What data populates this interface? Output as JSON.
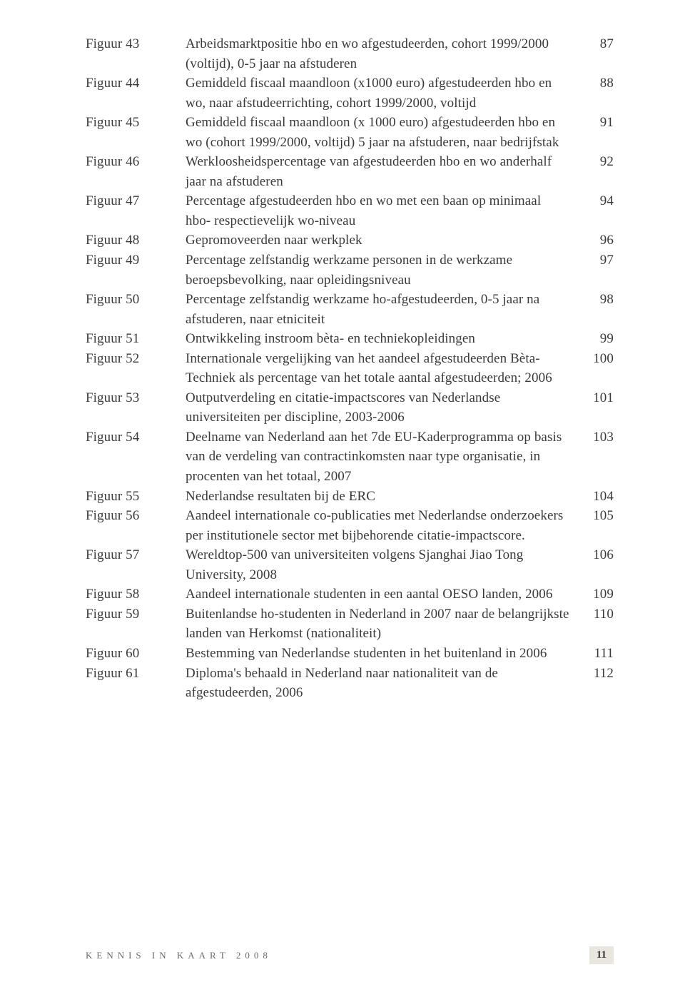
{
  "entries": [
    {
      "label": "Figuur 43",
      "desc": "Arbeidsmarktpositie hbo en wo afgestudeerden, cohort 1999/2000 (voltijd), 0-5 jaar na afstuderen",
      "page": "87"
    },
    {
      "label": "Figuur 44",
      "desc": "Gemiddeld fiscaal maandloon (x1000 euro) afgestudeerden hbo en wo, naar afstudeerrichting, cohort 1999/2000, voltijd",
      "page": "88"
    },
    {
      "label": "Figuur 45",
      "desc": "Gemiddeld fiscaal maandloon (x 1000 euro) afgestudeerden hbo en wo (cohort 1999/2000, voltijd) 5 jaar na afstuderen, naar bedrijfstak",
      "page": "91"
    },
    {
      "label": "Figuur 46",
      "desc": "Werkloosheidspercentage van afgestudeerden hbo en wo anderhalf jaar na afstuderen",
      "page": "92"
    },
    {
      "label": "Figuur 47",
      "desc": "Percentage afgestudeerden hbo en wo met een baan op minimaal hbo- respectievelijk wo-niveau",
      "page": "94"
    },
    {
      "label": "Figuur 48",
      "desc": "Gepromoveerden naar werkplek",
      "page": "96"
    },
    {
      "label": "Figuur 49",
      "desc": "Percentage zelfstandig werkzame personen in de werkzame beroepsbevolking, naar opleidingsniveau",
      "page": "97"
    },
    {
      "label": "Figuur 50",
      "desc": "Percentage zelfstandig werkzame ho-afgestudeerden, 0-5 jaar na afstuderen, naar etniciteit",
      "page": "98"
    },
    {
      "label": "Figuur 51",
      "desc": "Ontwikkeling instroom bèta- en techniekopleidingen",
      "page": "99"
    },
    {
      "label": "Figuur 52",
      "desc": "Internationale vergelijking van het aandeel afgestudeerden Bèta-Techniek als percentage van het totale aantal afgestudeerden; 2006",
      "page": "100"
    },
    {
      "label": "Figuur 53",
      "desc": "Outputverdeling en citatie-impactscores van Nederlandse universiteiten per discipline, 2003-2006",
      "page": "101"
    },
    {
      "label": "Figuur 54",
      "desc": "Deelname van Nederland aan het 7de EU-Kaderprogramma op basis van de verdeling van contractinkomsten naar type organisatie, in procenten van het totaal, 2007",
      "page": "103"
    },
    {
      "label": "Figuur 55",
      "desc": "Nederlandse resultaten bij de ERC",
      "page": "104"
    },
    {
      "label": "Figuur 56",
      "desc": "Aandeel internationale co-publicaties met Nederlandse onderzoekers per institutionele sector met bijbehorende citatie-impactscore.",
      "page": "105"
    },
    {
      "label": "Figuur 57",
      "desc": "Wereldtop-500 van universiteiten volgens Sjanghai Jiao Tong University, 2008",
      "page": "106"
    },
    {
      "label": "Figuur 58",
      "desc": "Aandeel internationale studenten in een aantal OESO landen, 2006",
      "page": "109"
    },
    {
      "label": "Figuur 59",
      "desc": "Buitenlandse ho-studenten in Nederland in 2007 naar de belangrijkste landen van Herkomst (nationaliteit)",
      "page": "110"
    },
    {
      "label": "Figuur 60",
      "desc": "Bestemming van Nederlandse studenten in het buitenland in 2006",
      "page": "111"
    },
    {
      "label": "Figuur 61",
      "desc": "Diploma's behaald in Nederland naar nationaliteit van de afgestudeerden, 2006",
      "page": "112"
    }
  ],
  "footer": {
    "title": "KENNIS IN KAART 2008",
    "page": "11"
  },
  "colors": {
    "text": "#3a3a38",
    "footerText": "#6b6b69",
    "bg": "#ffffff",
    "pageBadgeBg": "#e9e6df"
  }
}
